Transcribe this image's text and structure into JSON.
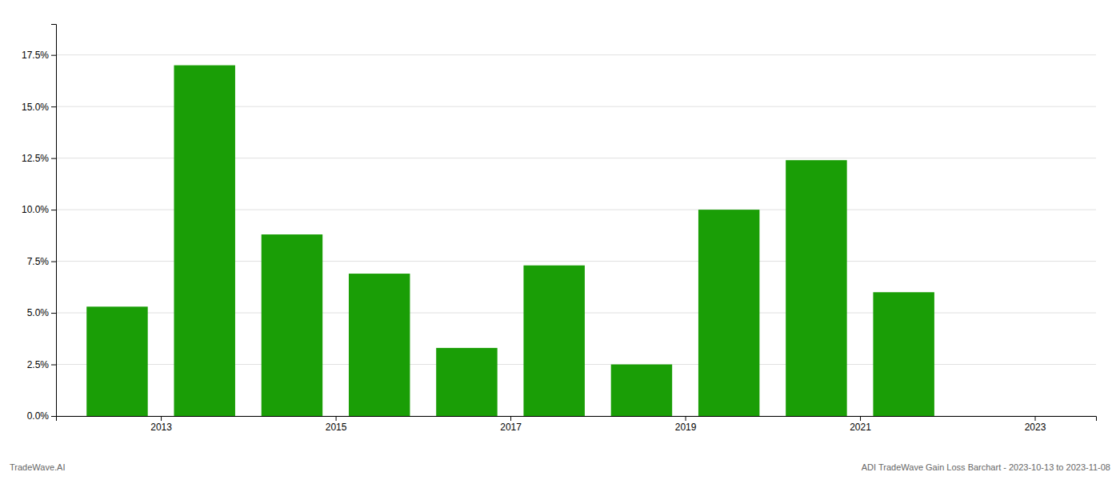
{
  "chart_data": {
    "type": "bar",
    "x": [
      2013,
      2014,
      2015,
      2016,
      2017,
      2018,
      2019,
      2020,
      2021,
      2022,
      2023
    ],
    "values": [
      0.053,
      0.17,
      0.088,
      0.069,
      0.033,
      0.073,
      0.025,
      0.1,
      0.124,
      0.06,
      null
    ],
    "color": "#1a9e06",
    "xlim": [
      2012.3,
      2024.2
    ],
    "xticks": [
      {
        "value": 2013.5,
        "label": "2013"
      },
      {
        "value": 2015.5,
        "label": "2015"
      },
      {
        "value": 2017.5,
        "label": "2017"
      },
      {
        "value": 2019.5,
        "label": "2019"
      },
      {
        "value": 2021.5,
        "label": "2021"
      },
      {
        "value": 2023.5,
        "label": "2023"
      }
    ],
    "ylim": [
      0,
      0.19
    ],
    "yticks": [
      {
        "value": 0.0,
        "label": "0.0%"
      },
      {
        "value": 0.025,
        "label": "2.5%"
      },
      {
        "value": 0.05,
        "label": "5.0%"
      },
      {
        "value": 0.075,
        "label": "7.5%"
      },
      {
        "value": 0.1,
        "label": "10.0%"
      },
      {
        "value": 0.125,
        "label": "12.5%"
      },
      {
        "value": 0.15,
        "label": "15.0%"
      },
      {
        "value": 0.175,
        "label": "17.5%"
      }
    ],
    "grid": true,
    "annotations": [
      "TradeWave.AI",
      "ADI TradeWave Gain Loss Barchart - 2023-10-13 to 2023-11-08"
    ]
  }
}
